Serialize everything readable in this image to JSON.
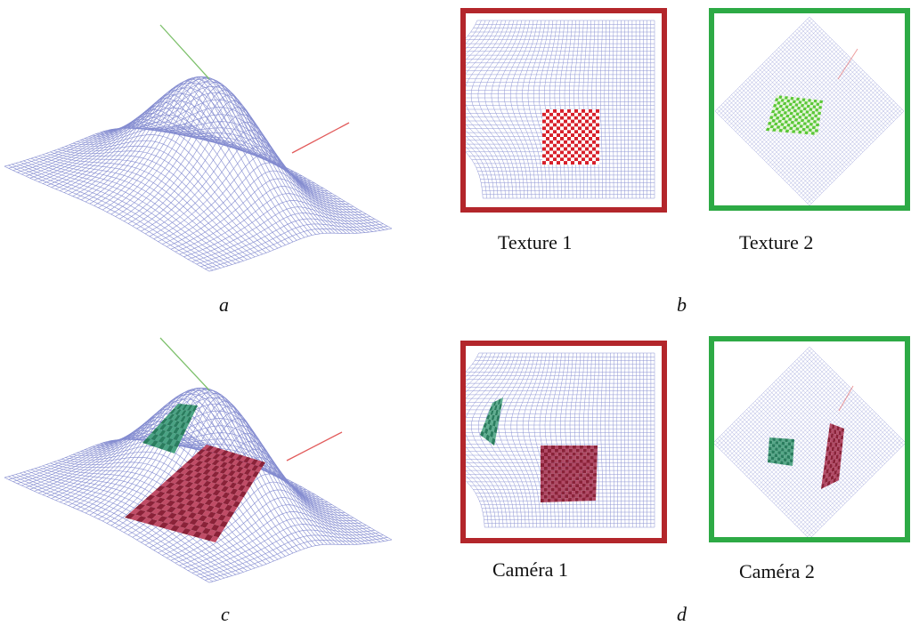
{
  "captions": {
    "texture1": "Texture 1",
    "texture2": "Texture 2",
    "camera1": "Caméra 1",
    "camera2": "Caméra 2"
  },
  "letters": {
    "a": "a",
    "b": "b",
    "c": "c",
    "d": "d"
  },
  "colors": {
    "mesh": "#6f78c8",
    "frame1": "#b3262b",
    "frame2": "#2daa45",
    "checker_red": "#d8202a",
    "checker_green": "#5ac836",
    "patch_dark_red": "#8a2238",
    "patch_dark_green": "#2a7d5e",
    "axis_green": "#7cc06a",
    "axis_red": "#e25b5b"
  }
}
